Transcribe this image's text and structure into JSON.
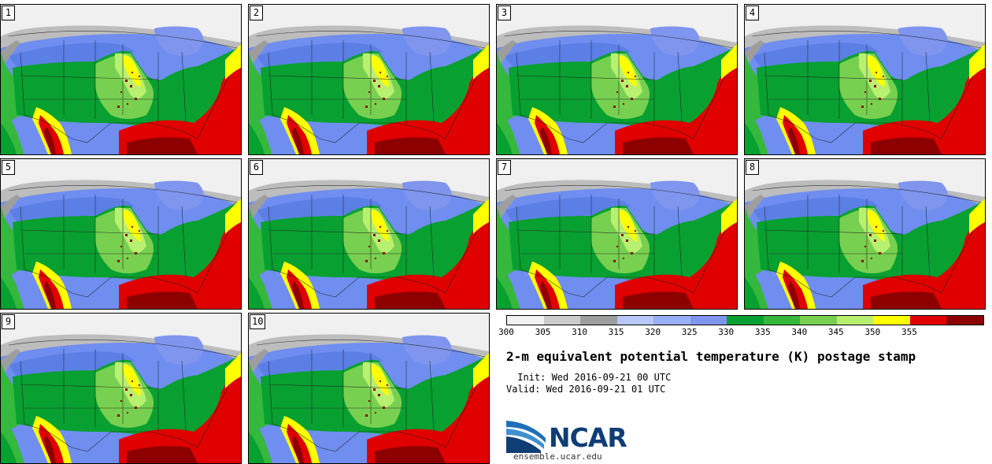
{
  "panels": [
    {
      "label": "1"
    },
    {
      "label": "2"
    },
    {
      "label": "3"
    },
    {
      "label": "4"
    },
    {
      "label": "5"
    },
    {
      "label": "6"
    },
    {
      "label": "7"
    },
    {
      "label": "8"
    },
    {
      "label": "9"
    },
    {
      "label": "10"
    }
  ],
  "colorbar": {
    "colors": [
      "#f2f2f2",
      "#cccccc",
      "#9e9e9e",
      "#b8c8f8",
      "#99aff8",
      "#7f95ee",
      "#08a030",
      "#36b83c",
      "#78d050",
      "#b8f070",
      "#ffff00",
      "#e00000",
      "#8c0000"
    ],
    "tick_labels": [
      "300",
      "305",
      "310",
      "315",
      "320",
      "325",
      "330",
      "335",
      "340",
      "345",
      "350",
      "355"
    ]
  },
  "title": "2-m equivalent potential temperature (K) postage stamp",
  "init": " Init: Wed 2016-09-21 00 UTC",
  "valid": "Valid: Wed 2016-09-21 01 UTC",
  "logo": {
    "text": "NCAR",
    "url": "ensemble.ucar.edu"
  }
}
